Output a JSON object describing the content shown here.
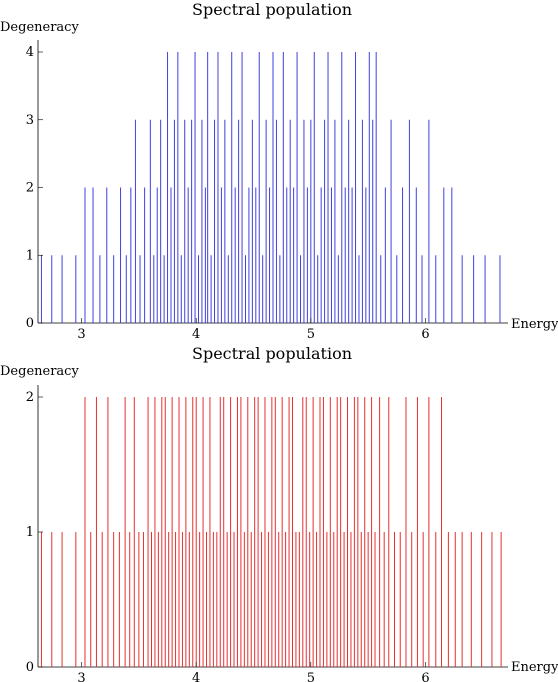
{
  "chart_data": [
    {
      "type": "bar",
      "title": "Spectral population",
      "xlabel": "Energy",
      "ylabel": "Degeneracy",
      "color": "#4040e0",
      "xlim": [
        2.62,
        6.72
      ],
      "ylim": [
        0,
        4
      ],
      "xticks": [
        3,
        4,
        5,
        6
      ],
      "yticks": [
        0,
        1,
        2,
        3,
        4
      ],
      "x": [
        2.65,
        2.74,
        2.83,
        2.95,
        3.03,
        3.1,
        3.16,
        3.22,
        3.28,
        3.34,
        3.39,
        3.43,
        3.47,
        3.51,
        3.55,
        3.6,
        3.63,
        3.66,
        3.69,
        3.72,
        3.75,
        3.78,
        3.81,
        3.84,
        3.87,
        3.9,
        3.93,
        3.96,
        3.99,
        4.02,
        4.05,
        4.08,
        4.1,
        4.13,
        4.16,
        4.19,
        4.22,
        4.25,
        4.28,
        4.31,
        4.34,
        4.37,
        4.4,
        4.43,
        4.46,
        4.49,
        4.52,
        4.55,
        4.58,
        4.61,
        4.64,
        4.67,
        4.7,
        4.73,
        4.76,
        4.79,
        4.82,
        4.85,
        4.88,
        4.91,
        4.94,
        4.97,
        5.0,
        5.03,
        5.06,
        5.09,
        5.12,
        5.15,
        5.18,
        5.21,
        5.24,
        5.27,
        5.3,
        5.33,
        5.36,
        5.39,
        5.42,
        5.45,
        5.48,
        5.51,
        5.54,
        5.57,
        5.61,
        5.65,
        5.7,
        5.75,
        5.8,
        5.86,
        5.92,
        5.97,
        6.03,
        6.09,
        6.16,
        6.23,
        6.32,
        6.42,
        6.52,
        6.65
      ],
      "values": [
        1,
        1,
        1,
        1,
        2,
        2,
        1,
        2,
        1,
        2,
        1,
        2,
        3,
        1,
        2,
        3,
        1,
        2,
        3,
        1,
        4,
        2,
        3,
        4,
        1,
        3,
        2,
        3,
        4,
        1,
        3,
        2,
        4,
        1,
        3,
        4,
        2,
        3,
        1,
        4,
        2,
        3,
        4,
        1,
        2,
        3,
        2,
        4,
        1,
        3,
        2,
        4,
        3,
        1,
        4,
        2,
        3,
        2,
        4,
        1,
        3,
        2,
        3,
        4,
        1,
        2,
        3,
        4,
        2,
        3,
        1,
        4,
        2,
        3,
        2,
        4,
        1,
        3,
        2,
        4,
        3,
        4,
        1,
        2,
        3,
        1,
        2,
        3,
        2,
        1,
        3,
        1,
        2,
        2,
        1,
        1,
        1,
        1
      ]
    },
    {
      "type": "bar",
      "title": "Spectral population",
      "xlabel": "Energy",
      "ylabel": "Degeneracy",
      "color": "#e83030",
      "xlim": [
        2.62,
        6.72
      ],
      "ylim": [
        0,
        2
      ],
      "xticks": [
        3,
        4,
        5,
        6
      ],
      "yticks": [
        0,
        1,
        2
      ],
      "x": [
        2.65,
        2.74,
        2.83,
        2.95,
        3.03,
        3.08,
        3.13,
        3.18,
        3.23,
        3.28,
        3.33,
        3.38,
        3.42,
        3.46,
        3.5,
        3.54,
        3.58,
        3.61,
        3.64,
        3.67,
        3.7,
        3.73,
        3.76,
        3.79,
        3.82,
        3.85,
        3.88,
        3.91,
        3.94,
        3.97,
        4.0,
        4.03,
        4.06,
        4.09,
        4.12,
        4.15,
        4.18,
        4.21,
        4.24,
        4.27,
        4.3,
        4.33,
        4.36,
        4.39,
        4.42,
        4.45,
        4.48,
        4.51,
        4.54,
        4.57,
        4.6,
        4.63,
        4.66,
        4.69,
        4.72,
        4.75,
        4.78,
        4.81,
        4.84,
        4.87,
        4.9,
        4.93,
        4.96,
        4.99,
        5.02,
        5.05,
        5.08,
        5.11,
        5.14,
        5.17,
        5.2,
        5.23,
        5.26,
        5.29,
        5.32,
        5.35,
        5.38,
        5.41,
        5.44,
        5.47,
        5.5,
        5.53,
        5.56,
        5.6,
        5.64,
        5.68,
        5.73,
        5.78,
        5.83,
        5.88,
        5.93,
        5.98,
        6.03,
        6.09,
        6.14,
        6.2,
        6.26,
        6.32,
        6.4,
        6.49,
        6.58,
        6.66
      ],
      "values": [
        1,
        1,
        1,
        1,
        2,
        1,
        2,
        1,
        2,
        1,
        1,
        2,
        1,
        2,
        1,
        1,
        2,
        1,
        2,
        1,
        2,
        2,
        1,
        2,
        1,
        2,
        1,
        2,
        1,
        2,
        2,
        1,
        2,
        1,
        2,
        1,
        1,
        2,
        2,
        1,
        2,
        1,
        2,
        2,
        1,
        2,
        1,
        2,
        2,
        1,
        2,
        1,
        2,
        2,
        1,
        2,
        1,
        2,
        2,
        1,
        1,
        2,
        2,
        1,
        2,
        1,
        2,
        2,
        1,
        2,
        1,
        2,
        2,
        1,
        2,
        1,
        2,
        2,
        1,
        2,
        1,
        2,
        1,
        2,
        1,
        2,
        1,
        1,
        2,
        1,
        2,
        1,
        2,
        1,
        2,
        1,
        1,
        1,
        1,
        1,
        1,
        1
      ]
    }
  ]
}
